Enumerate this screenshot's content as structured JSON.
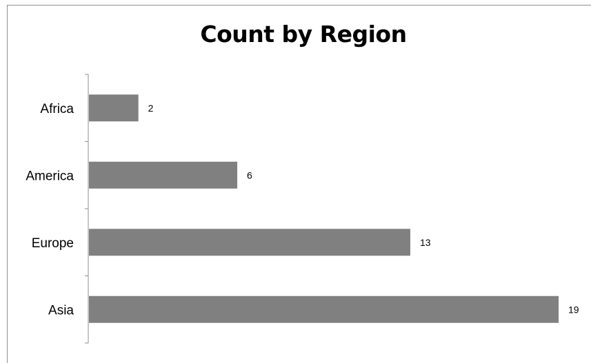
{
  "chart_data": {
    "type": "bar",
    "orientation": "horizontal",
    "title": "Count by Region",
    "categories": [
      "Africa",
      "America",
      "Europe",
      "Asia"
    ],
    "values": [
      2,
      6,
      13,
      19
    ],
    "xlabel": "",
    "ylabel": "",
    "xlim": [
      0,
      19
    ],
    "data_labels": true,
    "grid": false,
    "legend": "none",
    "bar_color": "#808080"
  }
}
